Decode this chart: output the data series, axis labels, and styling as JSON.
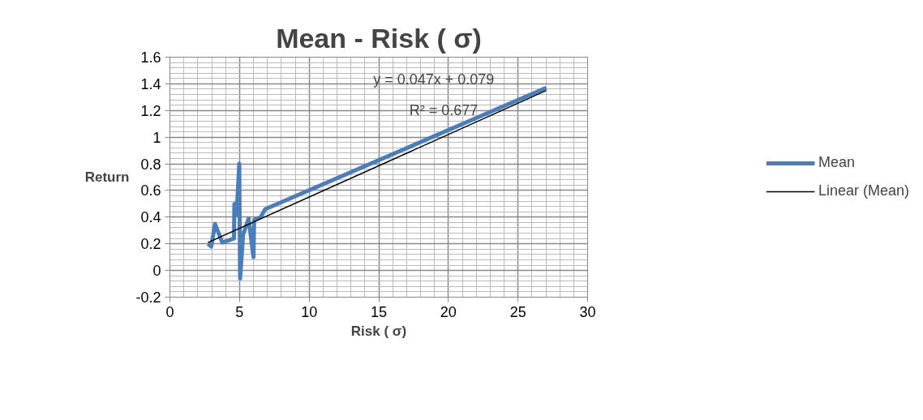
{
  "chart_data": {
    "type": "line",
    "title": "Mean - Risk ( σ)",
    "xlabel": "Risk ( σ)",
    "ylabel": "Return",
    "series": [
      {
        "name": "Mean",
        "color": "#4a7ebb",
        "x": [
          2.73,
          2.97,
          3.24,
          3.76,
          4.31,
          4.6,
          4.63,
          4.79,
          4.98,
          5.04,
          5.26,
          5.65,
          6.0,
          6.05,
          6.52,
          6.84,
          27.03
        ],
        "values": [
          0.2,
          0.18,
          0.35,
          0.21,
          0.23,
          0.24,
          0.5,
          0.42,
          0.8,
          -0.06,
          0.27,
          0.39,
          0.1,
          0.38,
          0.4,
          0.46,
          1.37
        ]
      },
      {
        "name": "Linear (Mean)",
        "color": "#000000",
        "x": [
          2.73,
          27.03
        ],
        "values": [
          0.21,
          1.35
        ]
      }
    ],
    "annotations": [
      "y = 0.047x + 0.079",
      "R² = 0.677"
    ],
    "xlim": [
      0,
      30
    ],
    "xticks": [
      0,
      5,
      10,
      15,
      20,
      25,
      30
    ],
    "ylim": [
      -0.2,
      1.6
    ],
    "yticks": [
      -0.2,
      0,
      0.2,
      0.4,
      0.6,
      0.8,
      1,
      1.2,
      1.4,
      1.6
    ],
    "grid": true,
    "legend": "right",
    "marker": "none",
    "line_style": "solid"
  }
}
